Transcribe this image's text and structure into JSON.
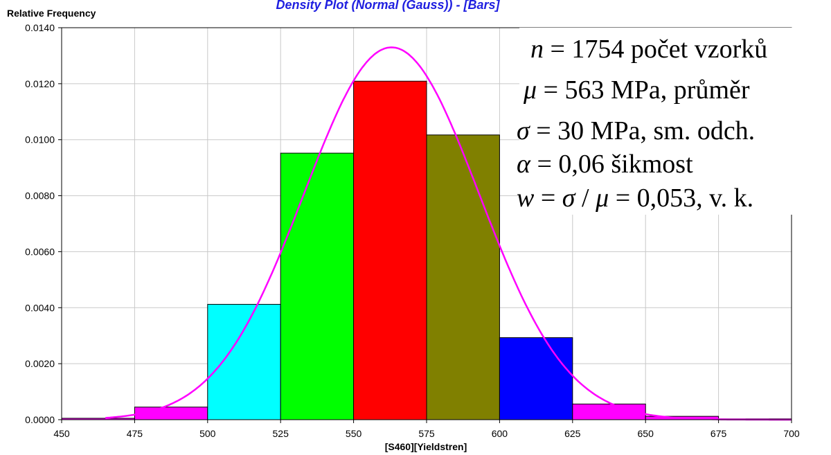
{
  "chart_data": {
    "type": "bar",
    "title": "Density Plot (Normal (Gauss)) - [Bars]",
    "xlabel": "[S460][Yieldstren]",
    "ylabel": "Relative Frequency",
    "xlim": [
      450,
      700
    ],
    "ylim": [
      0,
      0.014
    ],
    "x_ticks": [
      "450",
      "475",
      "500",
      "525",
      "550",
      "575",
      "600",
      "625",
      "650",
      "675",
      "700"
    ],
    "y_ticks": [
      "0.0000",
      "0.0020",
      "0.0040",
      "0.0060",
      "0.0080",
      "0.0100",
      "0.0120",
      "0.0140"
    ],
    "grid": true,
    "bars": [
      {
        "x0": 450,
        "x1": 475,
        "value": 5e-05,
        "color": "#ff00ff"
      },
      {
        "x0": 475,
        "x1": 500,
        "value": 0.00045,
        "color": "#ff00ff"
      },
      {
        "x0": 500,
        "x1": 525,
        "value": 0.00412,
        "color": "#00ffff"
      },
      {
        "x0": 525,
        "x1": 550,
        "value": 0.00952,
        "color": "#00ff00"
      },
      {
        "x0": 550,
        "x1": 575,
        "value": 0.01209,
        "color": "#ff0000"
      },
      {
        "x0": 575,
        "x1": 600,
        "value": 0.01017,
        "color": "#808000"
      },
      {
        "x0": 600,
        "x1": 625,
        "value": 0.00293,
        "color": "#0000ff"
      },
      {
        "x0": 625,
        "x1": 650,
        "value": 0.00056,
        "color": "#ff00ff"
      },
      {
        "x0": 650,
        "x1": 675,
        "value": 0.00012,
        "color": "#ff00ff"
      },
      {
        "x0": 675,
        "x1": 700,
        "value": 3e-05,
        "color": "#ff00ff"
      }
    ],
    "fit_curve": {
      "type": "normal",
      "mean": 563,
      "sd": 30,
      "color": "#ff00ff"
    },
    "annotations": {
      "line1": {
        "sym": "n",
        "rest": " = 1754 počet vzorků"
      },
      "line2": {
        "sym": "μ",
        "rest": " = 563 MPa, průměr"
      },
      "line3": {
        "sym": "σ",
        "rest": " =   30 MPa, sm. odch."
      },
      "line4": {
        "sym": "α",
        "rest": " =  0,06 šikmost"
      },
      "line5": {
        "sym": "w",
        "mid": " = ",
        "sym2": "σ",
        "mid2": " / ",
        "sym3": "μ",
        "rest": " =  0,053, v. k."
      }
    }
  }
}
